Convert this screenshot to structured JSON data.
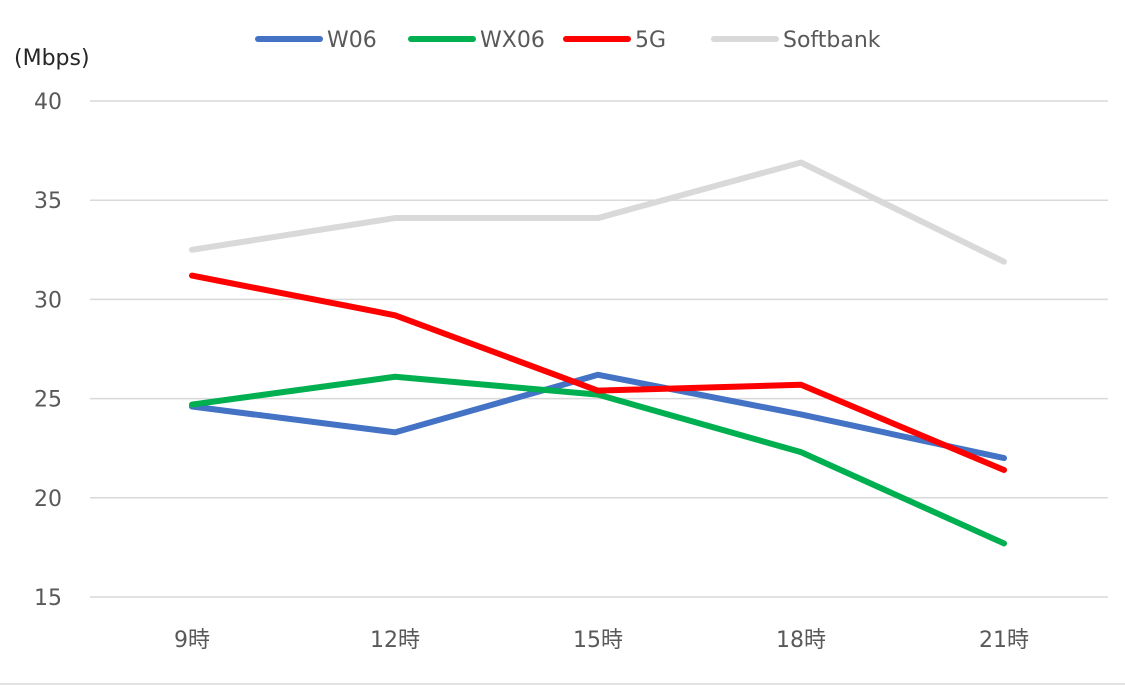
{
  "chart_data": {
    "type": "line",
    "title": "",
    "xlabel": "",
    "ylabel": "(Mbps)",
    "categories": [
      "9時",
      "12時",
      "15時",
      "18時",
      "21時"
    ],
    "ylim": [
      15,
      40
    ],
    "yticks": [
      15,
      20,
      25,
      30,
      35,
      40
    ],
    "grid": true,
    "legend_position": "top",
    "series": [
      {
        "name": "W06",
        "color": "#4472C4",
        "values": [
          24.6,
          23.3,
          26.2,
          24.2,
          22.0
        ]
      },
      {
        "name": "WX06",
        "color": "#00B050",
        "values": [
          24.7,
          26.1,
          25.2,
          22.3,
          17.7
        ]
      },
      {
        "name": "5G",
        "color": "#FF0000",
        "values": [
          31.2,
          29.2,
          25.4,
          25.7,
          21.4
        ]
      },
      {
        "name": "Softbank",
        "color": "#D9D9D9",
        "values": [
          32.5,
          34.1,
          34.1,
          36.9,
          31.9
        ]
      }
    ]
  }
}
